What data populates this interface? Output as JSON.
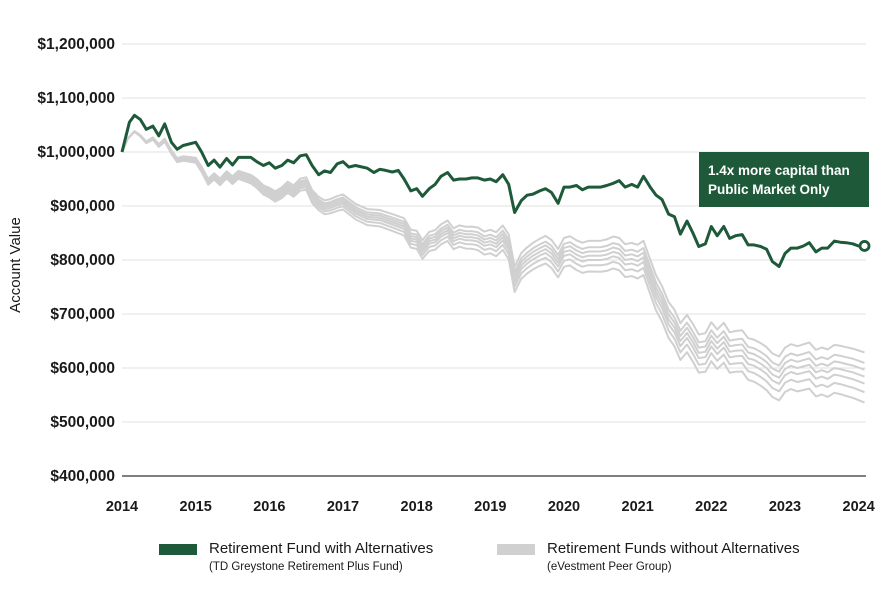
{
  "chart_data": {
    "type": "line",
    "ylabel": "Account Value",
    "xlabel": "",
    "x_ticks": [
      "2014",
      "2015",
      "2016",
      "2017",
      "2018",
      "2019",
      "2020",
      "2021",
      "2022",
      "2023",
      "2024"
    ],
    "y_ticks": [
      "$400,000",
      "$500,000",
      "$600,000",
      "$700,000",
      "$800,000",
      "$900,000",
      "$1,000,000",
      "$1,100,000",
      "$1,200,000"
    ],
    "ylim": [
      400000,
      1200000
    ],
    "xlim": [
      2014,
      2024.1
    ],
    "grid": "horizontal",
    "legend_position": "bottom",
    "annotation": {
      "lines": [
        "1.4x more capital than",
        "Public Market Only"
      ],
      "color": "#1e5a3a"
    },
    "series": [
      {
        "name": "Retirement Fund with Alternatives",
        "subtitle": "(TD Greystone Retirement Plus Fund)",
        "color": "#1e5a3a",
        "end_marker": true,
        "points": [
          [
            2014.0,
            1000000
          ],
          [
            2014.1,
            1055000
          ],
          [
            2014.17,
            1068000
          ],
          [
            2014.25,
            1060000
          ],
          [
            2014.33,
            1042000
          ],
          [
            2014.42,
            1048000
          ],
          [
            2014.5,
            1030000
          ],
          [
            2014.58,
            1052000
          ],
          [
            2014.67,
            1018000
          ],
          [
            2014.75,
            1005000
          ],
          [
            2014.83,
            1012000
          ],
          [
            2015.0,
            1018000
          ],
          [
            2015.08,
            1000000
          ],
          [
            2015.17,
            975000
          ],
          [
            2015.25,
            985000
          ],
          [
            2015.33,
            972000
          ],
          [
            2015.42,
            988000
          ],
          [
            2015.5,
            976000
          ],
          [
            2015.58,
            990000
          ],
          [
            2015.75,
            990000
          ],
          [
            2015.83,
            982000
          ],
          [
            2015.92,
            975000
          ],
          [
            2016.0,
            980000
          ],
          [
            2016.08,
            970000
          ],
          [
            2016.17,
            975000
          ],
          [
            2016.25,
            985000
          ],
          [
            2016.33,
            980000
          ],
          [
            2016.42,
            993000
          ],
          [
            2016.5,
            995000
          ],
          [
            2016.58,
            975000
          ],
          [
            2016.67,
            958000
          ],
          [
            2016.75,
            965000
          ],
          [
            2016.83,
            962000
          ],
          [
            2016.92,
            978000
          ],
          [
            2017.0,
            982000
          ],
          [
            2017.08,
            972000
          ],
          [
            2017.17,
            975000
          ],
          [
            2017.33,
            970000
          ],
          [
            2017.42,
            962000
          ],
          [
            2017.5,
            968000
          ],
          [
            2017.58,
            966000
          ],
          [
            2017.67,
            963000
          ],
          [
            2017.75,
            966000
          ],
          [
            2017.83,
            950000
          ],
          [
            2017.92,
            928000
          ],
          [
            2018.0,
            932000
          ],
          [
            2018.08,
            918000
          ],
          [
            2018.17,
            932000
          ],
          [
            2018.25,
            940000
          ],
          [
            2018.33,
            955000
          ],
          [
            2018.42,
            962000
          ],
          [
            2018.5,
            948000
          ],
          [
            2018.58,
            950000
          ],
          [
            2018.67,
            950000
          ],
          [
            2018.75,
            952000
          ],
          [
            2018.83,
            952000
          ],
          [
            2018.92,
            948000
          ],
          [
            2019.0,
            950000
          ],
          [
            2019.08,
            945000
          ],
          [
            2019.17,
            958000
          ],
          [
            2019.25,
            940000
          ],
          [
            2019.33,
            888000
          ],
          [
            2019.42,
            910000
          ],
          [
            2019.5,
            920000
          ],
          [
            2019.58,
            922000
          ],
          [
            2019.67,
            928000
          ],
          [
            2019.75,
            932000
          ],
          [
            2019.83,
            925000
          ],
          [
            2019.92,
            905000
          ],
          [
            2020.0,
            935000
          ],
          [
            2020.08,
            935000
          ],
          [
            2020.17,
            938000
          ],
          [
            2020.25,
            930000
          ],
          [
            2020.33,
            935000
          ],
          [
            2020.5,
            935000
          ],
          [
            2020.58,
            938000
          ],
          [
            2020.67,
            942000
          ],
          [
            2020.75,
            947000
          ],
          [
            2020.83,
            935000
          ],
          [
            2020.92,
            940000
          ],
          [
            2021.0,
            935000
          ],
          [
            2021.08,
            955000
          ],
          [
            2021.17,
            935000
          ],
          [
            2021.25,
            920000
          ],
          [
            2021.33,
            912000
          ],
          [
            2021.42,
            885000
          ],
          [
            2021.5,
            880000
          ],
          [
            2021.58,
            848000
          ],
          [
            2021.67,
            872000
          ],
          [
            2021.75,
            850000
          ],
          [
            2021.83,
            825000
          ],
          [
            2021.92,
            830000
          ],
          [
            2022.0,
            862000
          ],
          [
            2022.08,
            845000
          ],
          [
            2022.17,
            862000
          ],
          [
            2022.25,
            840000
          ],
          [
            2022.33,
            845000
          ],
          [
            2022.42,
            847000
          ],
          [
            2022.5,
            828000
          ],
          [
            2022.58,
            828000
          ],
          [
            2022.67,
            825000
          ],
          [
            2022.75,
            820000
          ],
          [
            2022.83,
            797000
          ],
          [
            2022.92,
            788000
          ],
          [
            2023.0,
            812000
          ],
          [
            2023.08,
            822000
          ],
          [
            2023.17,
            822000
          ],
          [
            2023.25,
            826000
          ],
          [
            2023.33,
            832000
          ],
          [
            2023.42,
            815000
          ],
          [
            2023.5,
            822000
          ],
          [
            2023.58,
            822000
          ],
          [
            2023.67,
            835000
          ],
          [
            2023.75,
            833000
          ],
          [
            2023.83,
            832000
          ],
          [
            2023.92,
            830000
          ],
          [
            2024.0,
            826000
          ],
          [
            2024.08,
            826000
          ]
        ]
      },
      {
        "name": "Retirement Funds without Alternatives",
        "subtitle": "(eVestment Peer Group)",
        "color": "#d0d0d0",
        "points": [
          [
            2014.0,
            1000000
          ],
          [
            2014.08,
            1025000
          ],
          [
            2014.17,
            1038000
          ],
          [
            2014.25,
            1030000
          ],
          [
            2014.33,
            1018000
          ],
          [
            2014.42,
            1025000
          ],
          [
            2014.5,
            1012000
          ],
          [
            2014.58,
            1022000
          ],
          [
            2014.67,
            1000000
          ],
          [
            2014.75,
            985000
          ],
          [
            2014.83,
            988000
          ],
          [
            2015.0,
            985000
          ],
          [
            2015.08,
            968000
          ],
          [
            2015.17,
            945000
          ],
          [
            2015.25,
            955000
          ],
          [
            2015.33,
            945000
          ],
          [
            2015.42,
            958000
          ],
          [
            2015.5,
            948000
          ],
          [
            2015.58,
            958000
          ],
          [
            2015.75,
            950000
          ],
          [
            2015.83,
            942000
          ],
          [
            2015.92,
            930000
          ],
          [
            2016.0,
            925000
          ],
          [
            2016.08,
            918000
          ],
          [
            2016.17,
            925000
          ],
          [
            2016.25,
            935000
          ],
          [
            2016.33,
            928000
          ],
          [
            2016.42,
            940000
          ],
          [
            2016.5,
            942000
          ],
          [
            2016.58,
            918000
          ],
          [
            2016.67,
            905000
          ],
          [
            2016.75,
            898000
          ],
          [
            2016.83,
            900000
          ],
          [
            2016.92,
            905000
          ],
          [
            2017.0,
            908000
          ],
          [
            2017.17,
            890000
          ],
          [
            2017.33,
            880000
          ],
          [
            2017.5,
            878000
          ],
          [
            2017.67,
            870000
          ],
          [
            2017.83,
            862000
          ],
          [
            2017.92,
            840000
          ],
          [
            2018.0,
            838000
          ],
          [
            2018.08,
            820000
          ],
          [
            2018.17,
            835000
          ],
          [
            2018.25,
            838000
          ],
          [
            2018.33,
            848000
          ],
          [
            2018.42,
            855000
          ],
          [
            2018.5,
            840000
          ],
          [
            2018.58,
            845000
          ],
          [
            2018.67,
            842000
          ],
          [
            2018.75,
            842000
          ],
          [
            2018.83,
            840000
          ],
          [
            2018.92,
            832000
          ],
          [
            2019.0,
            835000
          ],
          [
            2019.08,
            830000
          ],
          [
            2019.17,
            842000
          ],
          [
            2019.25,
            825000
          ],
          [
            2019.33,
            765000
          ],
          [
            2019.42,
            790000
          ],
          [
            2019.5,
            800000
          ],
          [
            2019.58,
            808000
          ],
          [
            2019.67,
            815000
          ],
          [
            2019.75,
            820000
          ],
          [
            2019.83,
            812000
          ],
          [
            2019.92,
            795000
          ],
          [
            2020.0,
            815000
          ],
          [
            2020.08,
            818000
          ],
          [
            2020.17,
            810000
          ],
          [
            2020.25,
            805000
          ],
          [
            2020.33,
            808000
          ],
          [
            2020.5,
            808000
          ],
          [
            2020.58,
            810000
          ],
          [
            2020.67,
            815000
          ],
          [
            2020.75,
            812000
          ],
          [
            2020.83,
            800000
          ],
          [
            2020.92,
            802000
          ],
          [
            2021.0,
            798000
          ],
          [
            2021.08,
            805000
          ],
          [
            2021.17,
            770000
          ],
          [
            2021.25,
            740000
          ],
          [
            2021.33,
            720000
          ],
          [
            2021.42,
            690000
          ],
          [
            2021.5,
            675000
          ],
          [
            2021.58,
            650000
          ],
          [
            2021.67,
            665000
          ],
          [
            2021.75,
            648000
          ],
          [
            2021.83,
            628000
          ],
          [
            2021.92,
            630000
          ],
          [
            2022.0,
            650000
          ],
          [
            2022.08,
            636000
          ],
          [
            2022.17,
            648000
          ],
          [
            2022.25,
            630000
          ],
          [
            2022.33,
            632000
          ],
          [
            2022.42,
            633000
          ],
          [
            2022.5,
            618000
          ],
          [
            2022.58,
            615000
          ],
          [
            2022.67,
            608000
          ],
          [
            2022.75,
            600000
          ],
          [
            2022.83,
            588000
          ],
          [
            2022.92,
            582000
          ],
          [
            2023.0,
            598000
          ],
          [
            2023.08,
            604000
          ],
          [
            2023.17,
            600000
          ],
          [
            2023.25,
            603000
          ],
          [
            2023.33,
            606000
          ],
          [
            2023.42,
            592000
          ],
          [
            2023.5,
            596000
          ],
          [
            2023.58,
            592000
          ],
          [
            2023.67,
            600000
          ],
          [
            2023.75,
            598000
          ],
          [
            2023.83,
            595000
          ],
          [
            2023.92,
            592000
          ],
          [
            2024.0,
            588000
          ],
          [
            2024.08,
            584000
          ]
        ]
      }
    ]
  }
}
